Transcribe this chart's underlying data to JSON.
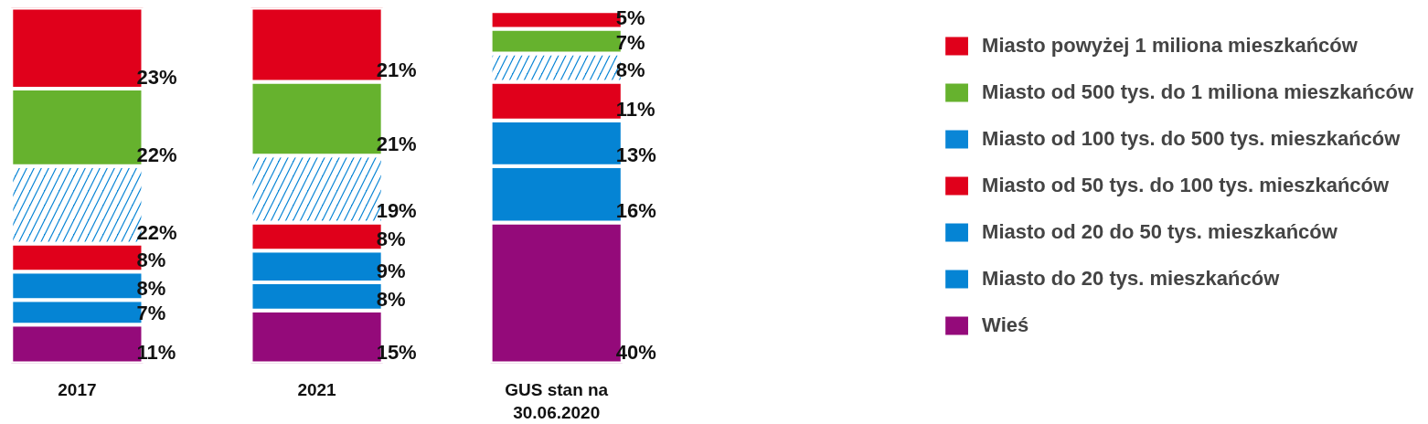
{
  "chart_data": {
    "type": "bar",
    "stacked": true,
    "categories": [
      "2017",
      "2021",
      "GUS stan na\n30.06.2020"
    ],
    "series": [
      {
        "name": "Wieś",
        "color": "#940a7a",
        "values": [
          11,
          15,
          40
        ],
        "value_labels": [
          "11%",
          "15%",
          "40%"
        ]
      },
      {
        "name": "Miasto do 20 tys. mieszkańców",
        "color": "#0584d4",
        "values": [
          7,
          8,
          16
        ],
        "value_labels": [
          "7%",
          "8%",
          "16%"
        ]
      },
      {
        "name": "Miasto od 20 do 50 tys. mieszkańców",
        "color": "#0584d4",
        "values": [
          8,
          9,
          13
        ],
        "value_labels": [
          "8%",
          "9%",
          "13%"
        ]
      },
      {
        "name": "Miasto od 50 tys. do 100 tys. mieszkańców",
        "color": "#e0001b",
        "values": [
          8,
          8,
          11
        ],
        "value_labels": [
          "8%",
          "8%",
          "11%"
        ]
      },
      {
        "name": "Miasto od 100 tys. do 500 tys. mieszkańców",
        "color": "#0a86d6",
        "values": [
          22,
          19,
          8
        ],
        "value_labels": [
          "22%",
          "19%",
          "8%"
        ]
      },
      {
        "name": "Miasto od 500 tys. do 1 miliona mieszkańców",
        "color": "#66b22e",
        "values": [
          22,
          21,
          7
        ],
        "value_labels": [
          "22%",
          "21%",
          "7%"
        ]
      },
      {
        "name": "Miasto powyżej 1 miliona mieszkańców",
        "color": "#e0001b",
        "values": [
          23,
          21,
          5
        ],
        "value_labels": [
          "23%",
          "21%",
          "5%"
        ]
      }
    ],
    "legend": "right",
    "tick_labels": "x",
    "grid": false
  }
}
